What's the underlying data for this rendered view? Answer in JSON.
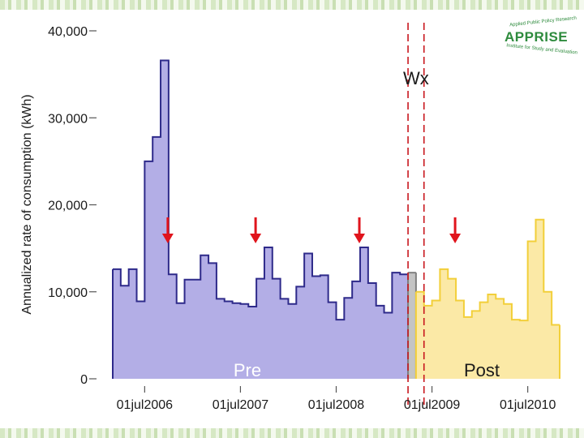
{
  "chart_data": {
    "type": "area",
    "title": "",
    "xlabel": "",
    "ylabel": "Annualized rate of consumption (kWh)",
    "ylim": [
      0,
      40000
    ],
    "xlim": [
      "2006-03",
      "2010-11"
    ],
    "yticks": [
      0,
      10000,
      20000,
      30000,
      40000
    ],
    "ytick_labels": [
      "0",
      "10,000",
      "20,000",
      "30,000",
      "40,000"
    ],
    "xticks": [
      "2006-07",
      "2007-07",
      "2008-07",
      "2009-07",
      "2010-07"
    ],
    "xtick_labels": [
      "01jul2006",
      "01jul2007",
      "01jul2008",
      "01jul2009",
      "01jul2010"
    ],
    "grid": false,
    "colors": {
      "pre_fill": "#b3aee6",
      "pre_line": "#2e2a8a",
      "wx_fill": "#c4c4c4",
      "wx_line": "#808080",
      "post_fill": "#fbe9a6",
      "post_line": "#f2cf3a",
      "marker": "#c8171e",
      "arrow": "#e0141c"
    },
    "series": [
      {
        "name": "Pre",
        "x": [
          "2006-03",
          "2006-04",
          "2006-05",
          "2006-06",
          "2006-07",
          "2006-08",
          "2006-09",
          "2006-10",
          "2006-11",
          "2006-12",
          "2007-01",
          "2007-02",
          "2007-03",
          "2007-04",
          "2007-05",
          "2007-06",
          "2007-07",
          "2007-08",
          "2007-09",
          "2007-10",
          "2007-11",
          "2007-12",
          "2008-01",
          "2008-02",
          "2008-03",
          "2008-04",
          "2008-05",
          "2008-06",
          "2008-07",
          "2008-08",
          "2008-09",
          "2008-10",
          "2008-11",
          "2008-12",
          "2009-01",
          "2009-02",
          "2009-03"
        ],
        "values": [
          12600,
          10700,
          12600,
          8900,
          25000,
          27800,
          36600,
          12000,
          8700,
          11400,
          11400,
          14200,
          13300,
          9200,
          8900,
          8700,
          8600,
          8300,
          11500,
          15100,
          11500,
          9200,
          8600,
          10600,
          14400,
          11800,
          11900,
          8800,
          6800,
          9300,
          11200,
          15100,
          11000,
          8400,
          7600,
          12200,
          12000
        ]
      },
      {
        "name": "Wx",
        "x": [
          "2009-04"
        ],
        "values": [
          12200
        ]
      },
      {
        "name": "Post",
        "x": [
          "2009-05",
          "2009-06",
          "2009-07",
          "2009-08",
          "2009-09",
          "2009-10",
          "2009-11",
          "2009-12",
          "2010-01",
          "2010-02",
          "2010-03",
          "2010-04",
          "2010-05",
          "2010-06",
          "2010-07",
          "2010-08",
          "2010-09",
          "2010-10"
        ],
        "values": [
          10000,
          8400,
          9000,
          12600,
          11500,
          9000,
          7100,
          7800,
          8800,
          9700,
          9200,
          8600,
          6800,
          6700,
          15800,
          18300,
          10000,
          6200
        ]
      }
    ],
    "wx_lines": [
      "2009-04",
      "2009-05"
    ],
    "wx_label": "Wx",
    "period_labels": [
      "Pre",
      "Post"
    ],
    "arrows": [
      "2006-10",
      "2007-09",
      "2008-10",
      "2009-10"
    ]
  }
}
